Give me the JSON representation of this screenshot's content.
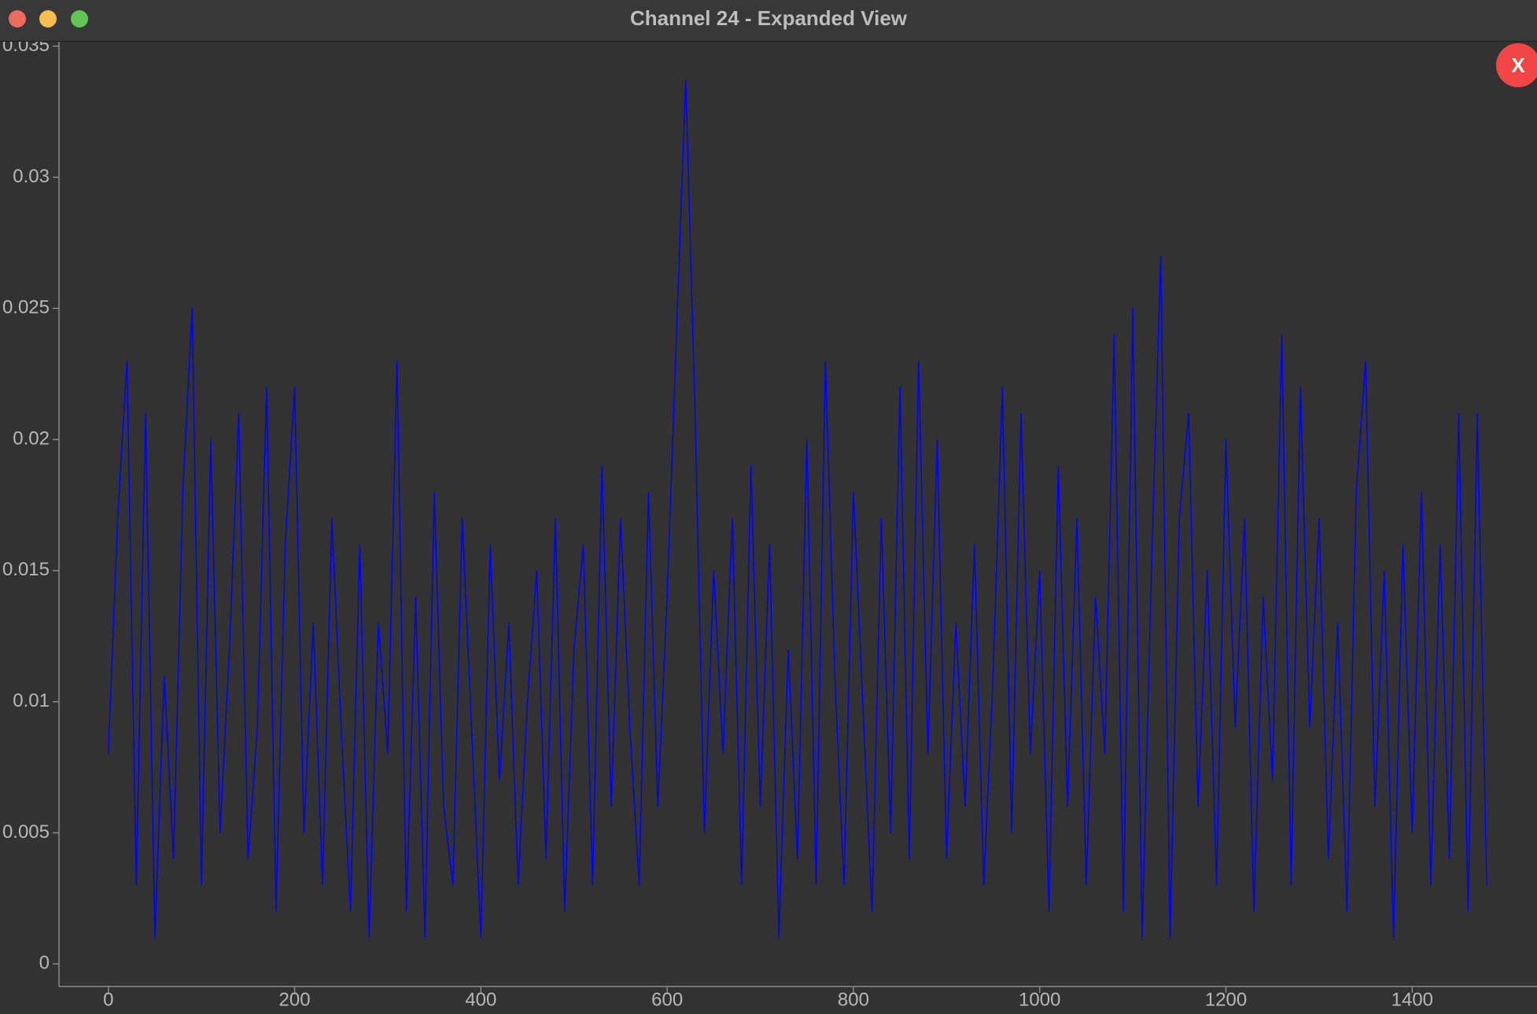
{
  "window": {
    "title": "Channel 24 - Expanded View",
    "close_button": "X"
  },
  "chart_data": {
    "type": "line",
    "color": "#0000ff",
    "x": [
      0,
      10,
      20,
      30,
      40,
      50,
      60,
      70,
      80,
      90,
      100,
      110,
      120,
      130,
      140,
      150,
      160,
      170,
      180,
      190,
      200,
      210,
      220,
      230,
      240,
      250,
      260,
      270,
      280,
      290,
      300,
      310,
      320,
      330,
      340,
      350,
      360,
      370,
      380,
      390,
      400,
      410,
      420,
      430,
      440,
      450,
      460,
      470,
      480,
      490,
      500,
      510,
      520,
      530,
      540,
      550,
      560,
      570,
      580,
      590,
      600,
      610,
      620,
      630,
      640,
      650,
      660,
      670,
      680,
      690,
      700,
      710,
      720,
      730,
      740,
      750,
      760,
      770,
      780,
      790,
      800,
      810,
      820,
      830,
      840,
      850,
      860,
      870,
      880,
      890,
      900,
      910,
      920,
      930,
      940,
      950,
      960,
      970,
      980,
      990,
      1000,
      1010,
      1020,
      1030,
      1040,
      1050,
      1060,
      1070,
      1080,
      1090,
      1100,
      1110,
      1120,
      1130,
      1140,
      1150,
      1160,
      1170,
      1180,
      1190,
      1200,
      1210,
      1220,
      1230,
      1240,
      1250,
      1260,
      1270,
      1280,
      1290,
      1300,
      1310,
      1320,
      1330,
      1340,
      1350,
      1360,
      1370,
      1380,
      1390,
      1400,
      1410,
      1420,
      1430,
      1440,
      1450,
      1460,
      1470,
      1480
    ],
    "values": [
      0.008,
      0.017,
      0.023,
      0.003,
      0.021,
      0.001,
      0.011,
      0.004,
      0.018,
      0.025,
      0.003,
      0.02,
      0.005,
      0.012,
      0.021,
      0.004,
      0.009,
      0.022,
      0.002,
      0.016,
      0.022,
      0.005,
      0.013,
      0.003,
      0.017,
      0.009,
      0.002,
      0.016,
      0.001,
      0.013,
      0.008,
      0.023,
      0.002,
      0.014,
      0.001,
      0.018,
      0.006,
      0.003,
      0.017,
      0.009,
      0.001,
      0.016,
      0.007,
      0.013,
      0.003,
      0.01,
      0.015,
      0.004,
      0.017,
      0.002,
      0.012,
      0.016,
      0.003,
      0.019,
      0.006,
      0.017,
      0.009,
      0.003,
      0.018,
      0.006,
      0.014,
      0.024,
      0.0337,
      0.021,
      0.005,
      0.015,
      0.008,
      0.017,
      0.003,
      0.019,
      0.006,
      0.016,
      0.001,
      0.012,
      0.004,
      0.02,
      0.003,
      0.023,
      0.011,
      0.003,
      0.018,
      0.01,
      0.002,
      0.017,
      0.005,
      0.022,
      0.004,
      0.023,
      0.008,
      0.02,
      0.004,
      0.013,
      0.006,
      0.016,
      0.003,
      0.011,
      0.022,
      0.005,
      0.021,
      0.008,
      0.015,
      0.002,
      0.019,
      0.006,
      0.017,
      0.003,
      0.014,
      0.008,
      0.024,
      0.002,
      0.025,
      0.001,
      0.015,
      0.027,
      0.001,
      0.017,
      0.021,
      0.006,
      0.015,
      0.003,
      0.02,
      0.009,
      0.017,
      0.002,
      0.014,
      0.007,
      0.024,
      0.003,
      0.022,
      0.009,
      0.017,
      0.004,
      0.013,
      0.002,
      0.018,
      0.023,
      0.006,
      0.015,
      0.001,
      0.016,
      0.005,
      0.018,
      0.003,
      0.016,
      0.004,
      0.021,
      0.002,
      0.021,
      0.003
    ],
    "xlim": [
      -53,
      1534
    ],
    "ylim": [
      -0.00086,
      0.0352
    ],
    "xticks": [
      0,
      200,
      400,
      600,
      800,
      1000,
      1200,
      1400
    ],
    "yticks": [
      0,
      0.005,
      0.01,
      0.015,
      0.02,
      0.025,
      0.03,
      0.035
    ]
  }
}
